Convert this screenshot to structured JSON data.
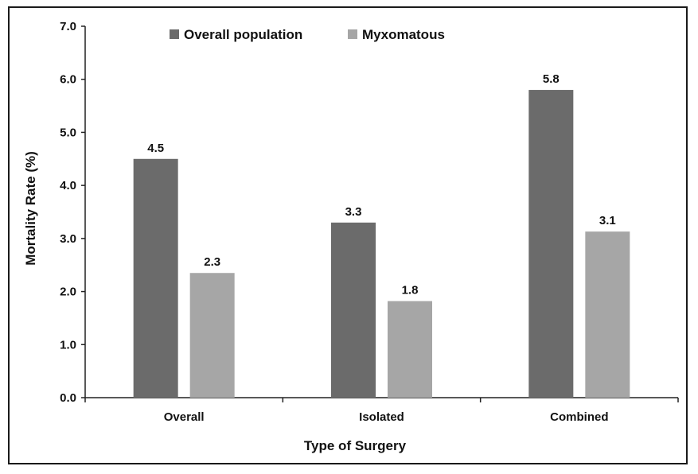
{
  "chart_data": {
    "type": "bar",
    "title": "",
    "xlabel": "Type of Surgery",
    "ylabel": "Mortality Rate (%)",
    "ylim": [
      0,
      7
    ],
    "yticks": [
      "0.0",
      "1.0",
      "2.0",
      "3.0",
      "4.0",
      "5.0",
      "6.0",
      "7.0"
    ],
    "categories": [
      "Overall",
      "Isolated",
      "Combined"
    ],
    "series": [
      {
        "name": "Overall population",
        "color": "#6b6b6b",
        "values": [
          4.5,
          3.3,
          5.8
        ],
        "labels": [
          "4.5",
          "3.3",
          "5.8"
        ]
      },
      {
        "name": "Myxomatous",
        "color": "#a6a6a6",
        "values": [
          2.35,
          1.82,
          3.13
        ],
        "labels": [
          "2.3",
          "1.8",
          "3.1"
        ]
      }
    ],
    "grid": false,
    "legend_position": "top"
  }
}
